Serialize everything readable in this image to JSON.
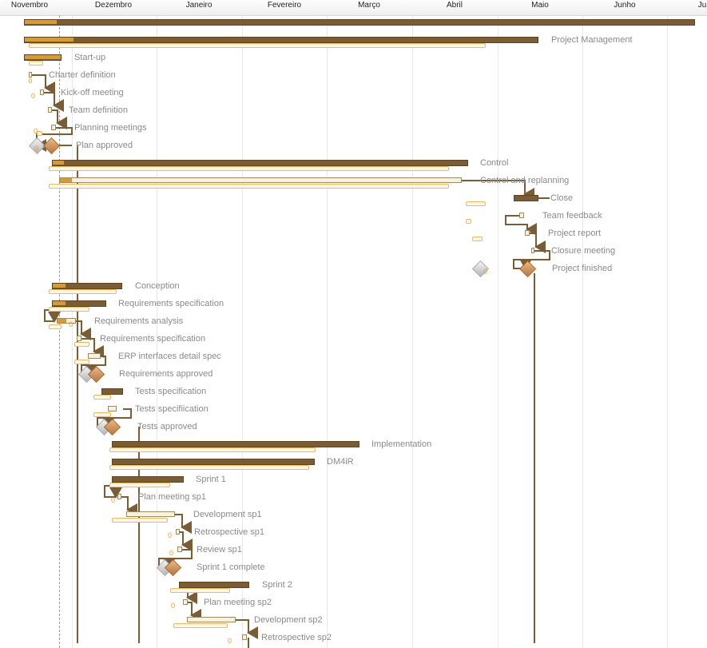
{
  "timeline": {
    "months": [
      "Novembro",
      "Dezembro",
      "Janeiro",
      "Fevereiro",
      "Março",
      "Abril",
      "Maio",
      "Junho",
      "Ju"
    ]
  },
  "tasks": [
    {
      "name": "",
      "type": "summary"
    },
    {
      "name": "Project Management",
      "type": "summary"
    },
    {
      "name": "Start-up",
      "type": "summary"
    },
    {
      "name": "Charter definition",
      "type": "task"
    },
    {
      "name": "Kick-off meeting",
      "type": "task"
    },
    {
      "name": "Team definition",
      "type": "task"
    },
    {
      "name": "Planning meetings",
      "type": "task"
    },
    {
      "name": "Plan approved",
      "type": "milestone"
    },
    {
      "name": "Control",
      "type": "summary"
    },
    {
      "name": "Control and replanning",
      "type": "task"
    },
    {
      "name": "Close",
      "type": "summary"
    },
    {
      "name": "Team feedback",
      "type": "task"
    },
    {
      "name": "Project report",
      "type": "task"
    },
    {
      "name": "Closure meeting",
      "type": "task"
    },
    {
      "name": "Project finished",
      "type": "milestone"
    },
    {
      "name": "Conception",
      "type": "summary"
    },
    {
      "name": "Requirements specification",
      "type": "summary"
    },
    {
      "name": "Requirements analysis",
      "type": "task"
    },
    {
      "name": "Requirements specification",
      "type": "task"
    },
    {
      "name": "ERP interfaces detail spec",
      "type": "task"
    },
    {
      "name": "Requirements approved",
      "type": "milestone"
    },
    {
      "name": "Tests specification",
      "type": "summary"
    },
    {
      "name": "Tests specifiication",
      "type": "task"
    },
    {
      "name": "Tests approved",
      "type": "milestone"
    },
    {
      "name": "Implementation",
      "type": "summary"
    },
    {
      "name": "DM4iR",
      "type": "summary"
    },
    {
      "name": "Sprint 1",
      "type": "summary"
    },
    {
      "name": "Plan meeting sp1",
      "type": "task"
    },
    {
      "name": "Development sp1",
      "type": "task"
    },
    {
      "name": "Retrospective sp1",
      "type": "task"
    },
    {
      "name": "Review sp1",
      "type": "task"
    },
    {
      "name": "Sprint 1 complete",
      "type": "milestone"
    },
    {
      "name": "Sprint 2",
      "type": "summary"
    },
    {
      "name": "Plan meeting sp2",
      "type": "task"
    },
    {
      "name": "Development sp2",
      "type": "task"
    },
    {
      "name": "Retrospective sp2",
      "type": "task"
    }
  ],
  "baseline_zero_mark": "0",
  "colors": {
    "summary": "#7a5d35",
    "progress": "#d99a2e",
    "baseline": "#f0b860",
    "milestone": "#b8763e",
    "link": "#7a5d35"
  }
}
